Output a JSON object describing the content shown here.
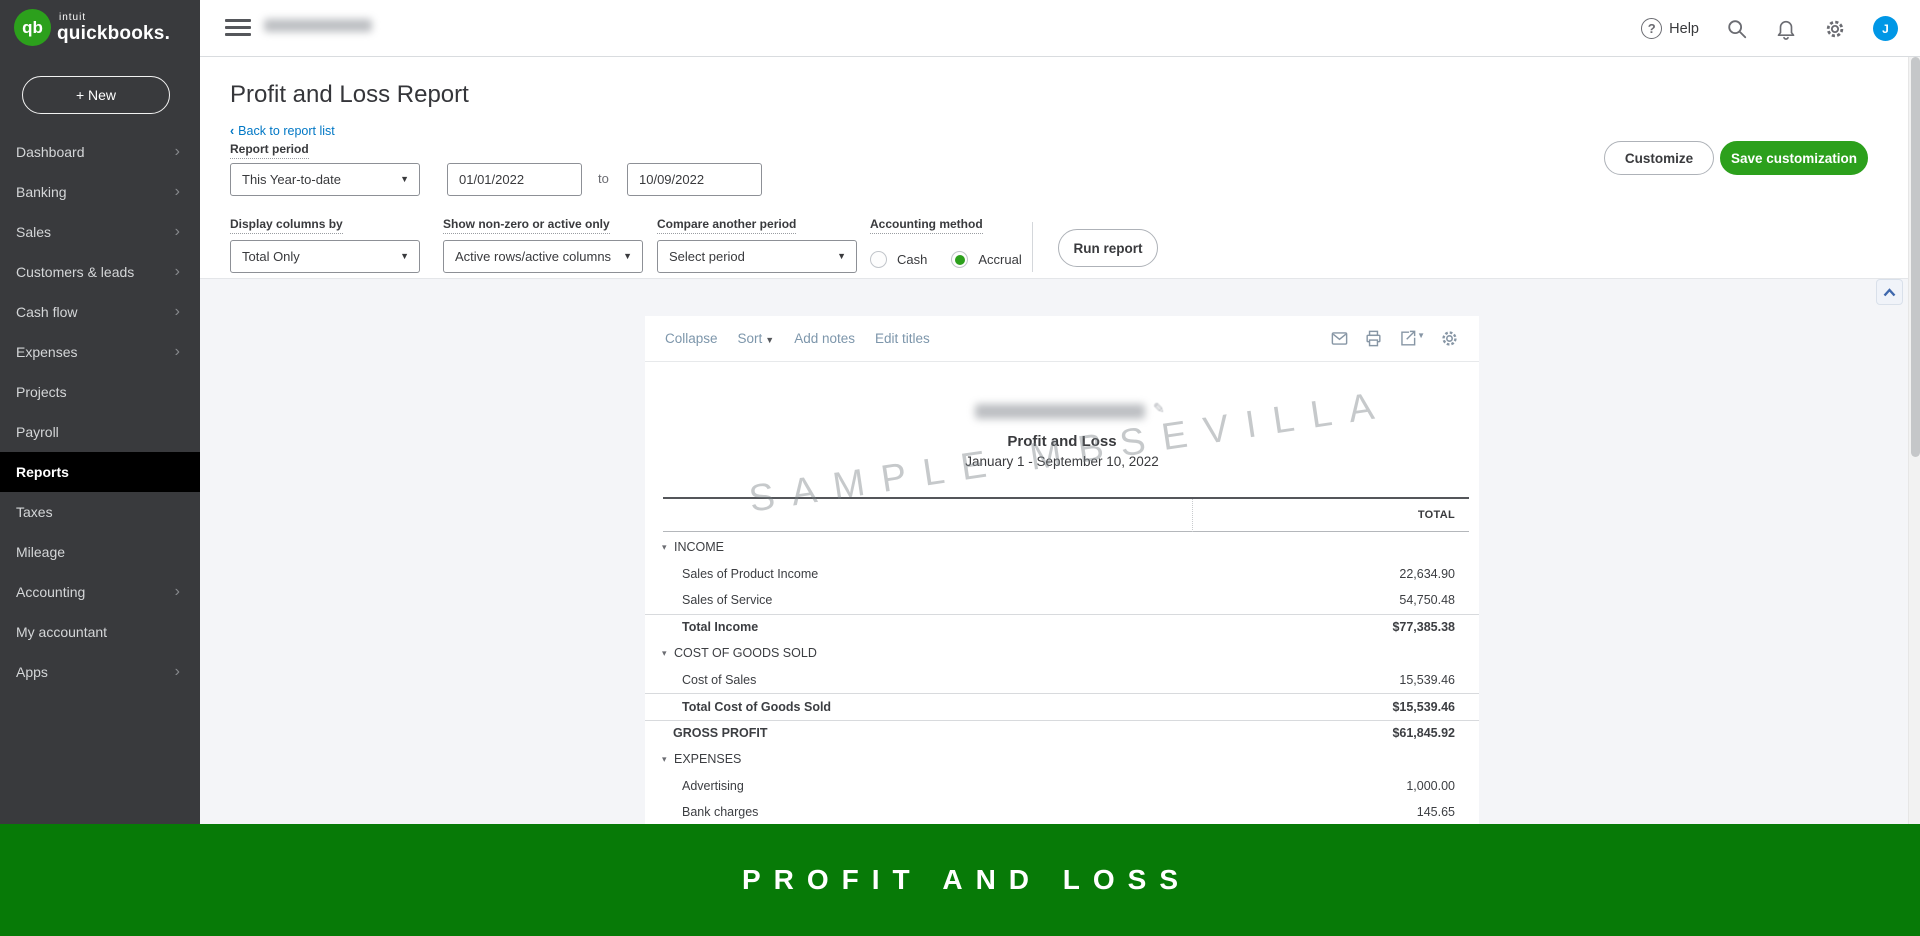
{
  "topbar": {
    "help_label": "Help",
    "avatar_initial": "J"
  },
  "sidebar": {
    "brand_prefix": "intuit",
    "brand_name": "quickbooks.",
    "logo_glyph": "qb",
    "new_button": "+ New",
    "items": [
      {
        "label": "Dashboard",
        "chevron": true,
        "active": false
      },
      {
        "label": "Banking",
        "chevron": true,
        "active": false
      },
      {
        "label": "Sales",
        "chevron": true,
        "active": false
      },
      {
        "label": "Customers & leads",
        "chevron": true,
        "active": false
      },
      {
        "label": "Cash flow",
        "chevron": true,
        "active": false
      },
      {
        "label": "Expenses",
        "chevron": true,
        "active": false
      },
      {
        "label": "Projects",
        "chevron": false,
        "active": false
      },
      {
        "label": "Payroll",
        "chevron": false,
        "active": false
      },
      {
        "label": "Reports",
        "chevron": false,
        "active": true
      },
      {
        "label": "Taxes",
        "chevron": false,
        "active": false
      },
      {
        "label": "Mileage",
        "chevron": false,
        "active": false
      },
      {
        "label": "Accounting",
        "chevron": true,
        "active": false
      },
      {
        "label": "My accountant",
        "chevron": false,
        "active": false
      },
      {
        "label": "Apps",
        "chevron": true,
        "active": false
      }
    ]
  },
  "page": {
    "title": "Profit and Loss Report",
    "back_chevron": "‹",
    "back_link": "Back to report list",
    "report_period_label": "Report period",
    "period_value": "This Year-to-date",
    "date_from": "01/01/2022",
    "to_label": "to",
    "date_to": "10/09/2022",
    "customize_button": "Customize",
    "save_customization_button": "Save customization",
    "filters": {
      "display_columns_label": "Display columns by",
      "display_columns_value": "Total Only",
      "nonzero_label": "Show non-zero or active only",
      "nonzero_value": "Active rows/active columns",
      "compare_label": "Compare another period",
      "compare_value": "Select period",
      "accounting_label": "Accounting method",
      "cash_label": "Cash",
      "accrual_label": "Accrual",
      "accrual_selected": true,
      "run_report_button": "Run report"
    }
  },
  "report": {
    "toolbar": {
      "collapse": "Collapse",
      "sort": "Sort",
      "add_notes": "Add notes",
      "edit_titles": "Edit titles"
    },
    "title": "Profit and Loss",
    "date_range": "January 1 - September 10, 2022",
    "watermark": "SAMPLE MBSEVILLA",
    "total_header": "TOTAL",
    "rows": [
      {
        "label": "INCOME",
        "value": "",
        "type": "section",
        "border_top": false
      },
      {
        "label": "Sales of Product Income",
        "value": "22,634.90",
        "type": "item",
        "border_top": false
      },
      {
        "label": "Sales of Service",
        "value": "54,750.48",
        "type": "item",
        "border_top": false
      },
      {
        "label": "Total Income",
        "value": "$77,385.38",
        "type": "total",
        "border_top": true
      },
      {
        "label": "COST OF GOODS SOLD",
        "value": "",
        "type": "section",
        "border_top": false
      },
      {
        "label": "Cost of Sales",
        "value": "15,539.46",
        "type": "item",
        "border_top": false
      },
      {
        "label": "Total Cost of Goods Sold",
        "value": "$15,539.46",
        "type": "total",
        "border_top": true
      },
      {
        "label": "GROSS PROFIT",
        "value": "$61,845.92",
        "type": "grand",
        "border_top": true
      },
      {
        "label": "EXPENSES",
        "value": "",
        "type": "section",
        "border_top": false
      },
      {
        "label": "Advertising",
        "value": "1,000.00",
        "type": "item",
        "border_top": false
      },
      {
        "label": "Bank charges",
        "value": "145.65",
        "type": "item",
        "border_top": false
      }
    ]
  },
  "banner": {
    "text": "PROFIT AND LOSS"
  },
  "colors": {
    "qb_green": "#2ca01c",
    "banner_green": "#077a07",
    "link_blue": "#0077c5",
    "sidebar_dark": "#393a3d",
    "active_item_bg": "#000000",
    "gray_bg": "#f4f5f8"
  }
}
